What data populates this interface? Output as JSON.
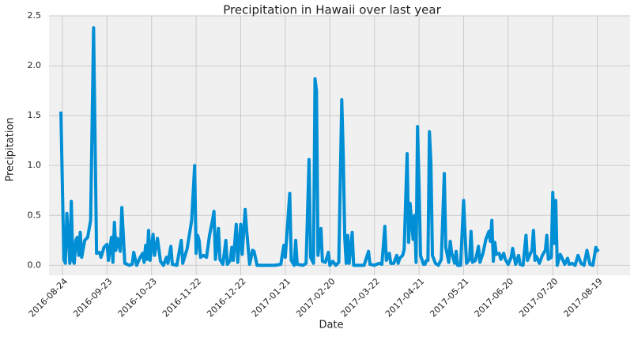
{
  "chart_data": {
    "type": "line",
    "title": "Precipitation in Hawaii over last year",
    "x_label": "Date",
    "y_label": "Precipitation",
    "color": "#008fd5",
    "grid": true,
    "xlim": [
      "2016-08-15",
      "2017-09-10"
    ],
    "ylim": [
      -0.1,
      2.5
    ],
    "xticks": [
      "2016-08-24",
      "2016-09-23",
      "2016-10-23",
      "2016-11-22",
      "2016-12-22",
      "2017-01-21",
      "2017-02-20",
      "2017-03-22",
      "2017-04-21",
      "2017-05-21",
      "2017-06-20",
      "2017-07-20",
      "2017-08-19"
    ],
    "yticks": [
      {
        "value": 0,
        "label": "0.0"
      },
      0.5,
      {
        "value": 1,
        "label": "1.0"
      },
      1.5,
      {
        "value": 2,
        "label": "2.0"
      },
      2.5
    ],
    "x": [
      "2016-08-23",
      "2016-08-25",
      "2016-08-26",
      "2016-08-27",
      "2016-08-28",
      "2016-08-29",
      "2016-08-30",
      "2016-08-31",
      "2016-09-01",
      "2016-09-02",
      "2016-09-03",
      "2016-09-04",
      "2016-09-05",
      "2016-09-06",
      "2016-09-08",
      "2016-09-10",
      "2016-09-12",
      "2016-09-14",
      "2016-09-16",
      "2016-09-18",
      "2016-09-19",
      "2016-09-21",
      "2016-09-23",
      "2016-09-24",
      "2016-09-26",
      "2016-09-27",
      "2016-09-28",
      "2016-09-29",
      "2016-09-30",
      "2016-10-02",
      "2016-10-03",
      "2016-10-05",
      "2016-10-08",
      "2016-10-10",
      "2016-10-11",
      "2016-10-13",
      "2016-10-15",
      "2016-10-17",
      "2016-10-18",
      "2016-10-19",
      "2016-10-20",
      "2016-10-21",
      "2016-10-22",
      "2016-10-24",
      "2016-10-25",
      "2016-10-27",
      "2016-10-29",
      "2016-10-31",
      "2016-11-02",
      "2016-11-03",
      "2016-11-05",
      "2016-11-06",
      "2016-11-09",
      "2016-11-12",
      "2016-11-13",
      "2016-11-16",
      "2016-11-19",
      "2016-11-21",
      "2016-11-22",
      "2016-11-23",
      "2016-11-24",
      "2016-11-25",
      "2016-11-27",
      "2016-11-29",
      "2016-12-01",
      "2016-12-03",
      "2016-12-04",
      "2016-12-05",
      "2016-12-07",
      "2016-12-08",
      "2016-12-10",
      "2016-12-12",
      "2016-12-13",
      "2016-12-15",
      "2016-12-16",
      "2016-12-17",
      "2016-12-19",
      "2016-12-20",
      "2016-12-22",
      "2016-12-23",
      "2016-12-25",
      "2016-12-26",
      "2016-12-28",
      "2016-12-30",
      "2016-12-31",
      "2017-01-02",
      "2017-01-08",
      "2017-01-14",
      "2017-01-18",
      "2017-01-20",
      "2017-01-21",
      "2017-01-24",
      "2017-01-25",
      "2017-01-27",
      "2017-01-28",
      "2017-01-29",
      "2017-02-02",
      "2017-02-04",
      "2017-02-06",
      "2017-02-07",
      "2017-02-09",
      "2017-02-10",
      "2017-02-11",
      "2017-02-12",
      "2017-02-14",
      "2017-02-15",
      "2017-02-17",
      "2017-02-19",
      "2017-02-20",
      "2017-02-22",
      "2017-02-24",
      "2017-02-26",
      "2017-02-28",
      "2017-03-01",
      "2017-03-02",
      "2017-03-03",
      "2017-03-04",
      "2017-03-05",
      "2017-03-07",
      "2017-03-08",
      "2017-03-12",
      "2017-03-15",
      "2017-03-18",
      "2017-03-19",
      "2017-03-22",
      "2017-03-25",
      "2017-03-27",
      "2017-03-29",
      "2017-03-30",
      "2017-04-01",
      "2017-04-02",
      "2017-04-04",
      "2017-04-06",
      "2017-04-07",
      "2017-04-08",
      "2017-04-10",
      "2017-04-11",
      "2017-04-13",
      "2017-04-14",
      "2017-04-15",
      "2017-04-17",
      "2017-04-18",
      "2017-04-19",
      "2017-04-20",
      "2017-04-21",
      "2017-04-22",
      "2017-04-24",
      "2017-04-25",
      "2017-04-26",
      "2017-04-27",
      "2017-04-28",
      "2017-04-29",
      "2017-04-30",
      "2017-05-02",
      "2017-05-04",
      "2017-05-06",
      "2017-05-08",
      "2017-05-09",
      "2017-05-11",
      "2017-05-12",
      "2017-05-13",
      "2017-05-15",
      "2017-05-16",
      "2017-05-17",
      "2017-05-19",
      "2017-05-21",
      "2017-05-22",
      "2017-05-23",
      "2017-05-25",
      "2017-05-26",
      "2017-05-27",
      "2017-05-29",
      "2017-05-31",
      "2017-06-01",
      "2017-06-03",
      "2017-06-05",
      "2017-06-07",
      "2017-06-08",
      "2017-06-09",
      "2017-06-10",
      "2017-06-11",
      "2017-06-12",
      "2017-06-14",
      "2017-06-15",
      "2017-06-17",
      "2017-06-18",
      "2017-06-20",
      "2017-06-22",
      "2017-06-23",
      "2017-06-25",
      "2017-06-27",
      "2017-06-28",
      "2017-06-30",
      "2017-07-02",
      "2017-07-03",
      "2017-07-05",
      "2017-07-06",
      "2017-07-07",
      "2017-07-08",
      "2017-07-09",
      "2017-07-11",
      "2017-07-13",
      "2017-07-15",
      "2017-07-16",
      "2017-07-17",
      "2017-07-19",
      "2017-07-20",
      "2017-07-21",
      "2017-07-22",
      "2017-07-23",
      "2017-07-25",
      "2017-07-26",
      "2017-07-28",
      "2017-07-30",
      "2017-07-31",
      "2017-08-02",
      "2017-08-04",
      "2017-08-06",
      "2017-08-08",
      "2017-08-10",
      "2017-08-12",
      "2017-08-14",
      "2017-08-16",
      "2017-08-18",
      "2017-08-19",
      "2017-08-20"
    ],
    "values": [
      1.54,
      0.06,
      0.02,
      0.52,
      0.3,
      0.02,
      0.64,
      0.05,
      0.02,
      0.25,
      0.28,
      0.1,
      0.33,
      0.08,
      0.25,
      0.28,
      0.45,
      2.38,
      0.12,
      0.13,
      0.08,
      0.18,
      0.21,
      0.05,
      0.28,
      0.03,
      0.43,
      0.15,
      0.27,
      0.14,
      0.58,
      0.02,
      0.0,
      0.01,
      0.13,
      0.0,
      0.07,
      0.12,
      0.03,
      0.2,
      0.06,
      0.35,
      0.05,
      0.31,
      0.1,
      0.27,
      0.04,
      0.0,
      0.08,
      0.02,
      0.19,
      0.01,
      0.0,
      0.25,
      0.02,
      0.17,
      0.45,
      1.0,
      0.12,
      0.3,
      0.25,
      0.08,
      0.1,
      0.08,
      0.3,
      0.45,
      0.54,
      0.06,
      0.37,
      0.06,
      0.01,
      0.25,
      0.01,
      0.05,
      0.18,
      0.05,
      0.41,
      0.03,
      0.41,
      0.11,
      0.56,
      0.35,
      0.01,
      0.15,
      0.14,
      0.0,
      0.0,
      0.0,
      0.01,
      0.2,
      0.08,
      0.72,
      0.05,
      0.0,
      0.25,
      0.01,
      0.0,
      0.02,
      1.06,
      0.08,
      0.02,
      1.87,
      1.75,
      0.1,
      0.37,
      0.04,
      0.03,
      0.13,
      0.0,
      0.04,
      0.0,
      0.03,
      1.66,
      1.1,
      0.28,
      0.02,
      0.3,
      0.02,
      0.33,
      0.0,
      0.0,
      0.0,
      0.14,
      0.01,
      0.0,
      0.02,
      0.01,
      0.39,
      0.05,
      0.12,
      0.02,
      0.02,
      0.1,
      0.02,
      0.07,
      0.1,
      0.16,
      1.12,
      0.23,
      0.62,
      0.26,
      0.5,
      0.03,
      1.39,
      0.8,
      0.1,
      0.01,
      0.01,
      0.05,
      0.05,
      1.34,
      1.02,
      0.1,
      0.02,
      0.0,
      0.06,
      0.92,
      0.18,
      0.03,
      0.24,
      0.12,
      0.02,
      0.14,
      0.0,
      0.0,
      0.65,
      0.3,
      0.02,
      0.06,
      0.34,
      0.03,
      0.05,
      0.19,
      0.03,
      0.12,
      0.26,
      0.34,
      0.24,
      0.45,
      0.04,
      0.23,
      0.11,
      0.12,
      0.06,
      0.12,
      0.06,
      0.01,
      0.08,
      0.17,
      0.01,
      0.1,
      0.01,
      0.0,
      0.3,
      0.05,
      0.12,
      0.15,
      0.35,
      0.05,
      0.09,
      0.02,
      0.1,
      0.15,
      0.3,
      0.06,
      0.08,
      0.73,
      0.22,
      0.65,
      0.0,
      0.11,
      0.08,
      0.01,
      0.07,
      0.01,
      0.02,
      0.0,
      0.1,
      0.02,
      0.0,
      0.15,
      0.01,
      0.0,
      0.18,
      0.15,
      0.14
    ]
  }
}
